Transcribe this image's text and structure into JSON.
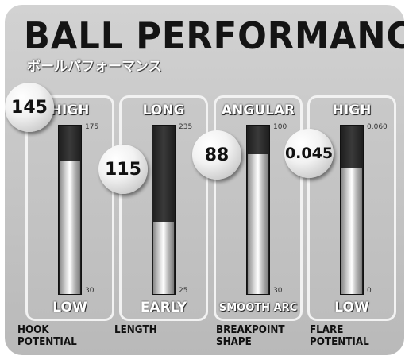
{
  "title": "BALL PERFORMANCE",
  "subtitle": "ボールパフォーマンス",
  "meters": [
    {
      "top_label": "HIGH",
      "bottom_label": "LOW",
      "max_label": "175",
      "min_label": "30",
      "value_label": "145",
      "min": 30,
      "max": 175,
      "value": 145,
      "caption_line1": "HOOK",
      "caption_line2": "POTENTIAL"
    },
    {
      "top_label": "LONG",
      "bottom_label": "EARLY",
      "max_label": "235",
      "min_label": "25",
      "value_label": "115",
      "min": 25,
      "max": 235,
      "value": 115,
      "caption_line1": "LENGTH",
      "caption_line2": ""
    },
    {
      "top_label": "ANGULAR",
      "bottom_label": "SMOOTH ARC",
      "max_label": "100",
      "min_label": "30",
      "value_label": "88",
      "min": 30,
      "max": 100,
      "value": 88,
      "caption_line1": "BREAKPOINT",
      "caption_line2": "SHAPE"
    },
    {
      "top_label": "HIGH",
      "bottom_label": "LOW",
      "max_label": "0.060",
      "min_label": "0",
      "value_label": "0.045",
      "min": 0,
      "max": 0.06,
      "value": 0.045,
      "caption_line1": "FLARE",
      "caption_line2": "POTENTIAL"
    }
  ]
}
